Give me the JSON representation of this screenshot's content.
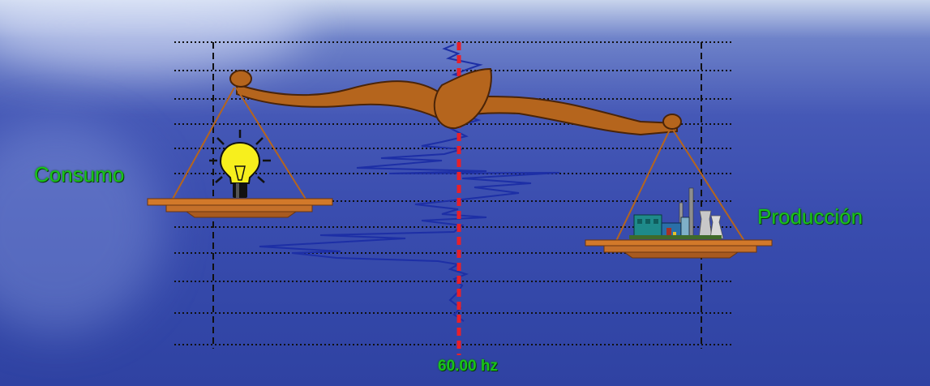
{
  "labels": {
    "consumo": "Consumo",
    "produccion": "Producción",
    "frequency": "60.00 hz"
  },
  "colors": {
    "balance_beam": "#b5651d",
    "frequency_line": "#e8202a",
    "text_green": "#19c419",
    "signal_trace": "#1d2fa6",
    "grid_dots": "#111111"
  },
  "icons": {
    "left_pan_item": "light-bulb-icon",
    "right_pan_item": "power-plant-icon"
  }
}
